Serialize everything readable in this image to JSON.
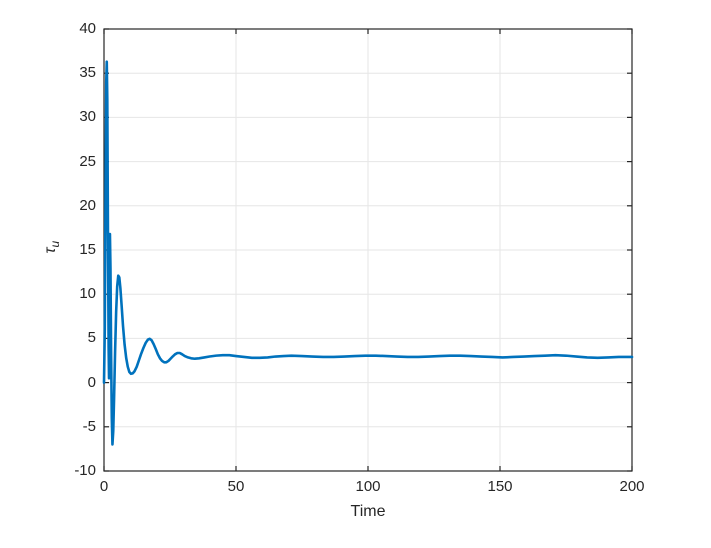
{
  "chart_data": {
    "type": "line",
    "title": "",
    "xlabel": "Time",
    "ylabel": "tau_u",
    "ylabel_tex": {
      "base": "τ",
      "sub": "u"
    },
    "xlim": [
      0,
      200
    ],
    "ylim": [
      -10,
      40
    ],
    "xticks": [
      0,
      50,
      100,
      150,
      200
    ],
    "yticks": [
      -10,
      -5,
      0,
      5,
      10,
      15,
      20,
      25,
      30,
      35,
      40
    ],
    "grid": true,
    "legend_position": "none",
    "colors": {
      "line": "#0072BD",
      "grid": "#E6E6E6",
      "axis": "#262626",
      "tick_label": "#262626",
      "background": "#FFFFFF"
    },
    "series": [
      {
        "name": "tau_u",
        "points": [
          [
            0,
            0
          ],
          [
            0.3,
            6
          ],
          [
            0.6,
            22
          ],
          [
            0.85,
            34
          ],
          [
            1.05,
            36.3
          ],
          [
            1.25,
            32
          ],
          [
            1.5,
            17
          ],
          [
            1.75,
            4
          ],
          [
            1.9,
            0.5
          ],
          [
            2.05,
            8
          ],
          [
            2.25,
            16.8
          ],
          [
            2.45,
            13
          ],
          [
            2.7,
            3
          ],
          [
            2.95,
            -4
          ],
          [
            3.2,
            -7
          ],
          [
            3.5,
            -5.5
          ],
          [
            3.8,
            -2
          ],
          [
            4.2,
            3.5
          ],
          [
            4.6,
            8
          ],
          [
            5,
            10.9
          ],
          [
            5.4,
            12.1
          ],
          [
            5.8,
            11.9
          ],
          [
            6.2,
            10.7
          ],
          [
            6.7,
            8.6
          ],
          [
            7.2,
            6.4
          ],
          [
            7.8,
            4.3
          ],
          [
            8.4,
            2.8
          ],
          [
            9,
            1.8
          ],
          [
            9.6,
            1.2
          ],
          [
            10.2,
            1
          ],
          [
            10.9,
            1.05
          ],
          [
            11.6,
            1.3
          ],
          [
            12.4,
            1.8
          ],
          [
            13.2,
            2.5
          ],
          [
            14,
            3.2
          ],
          [
            14.9,
            3.9
          ],
          [
            15.8,
            4.5
          ],
          [
            16.6,
            4.85
          ],
          [
            17.3,
            4.95
          ],
          [
            18,
            4.8
          ],
          [
            18.8,
            4.35
          ],
          [
            19.6,
            3.8
          ],
          [
            20.4,
            3.2
          ],
          [
            21.2,
            2.75
          ],
          [
            22,
            2.45
          ],
          [
            22.8,
            2.3
          ],
          [
            23.6,
            2.3
          ],
          [
            24.4,
            2.45
          ],
          [
            25.2,
            2.7
          ],
          [
            26,
            2.95
          ],
          [
            26.9,
            3.2
          ],
          [
            27.8,
            3.35
          ],
          [
            28.7,
            3.35
          ],
          [
            29.6,
            3.2
          ],
          [
            30.6,
            3
          ],
          [
            31.8,
            2.85
          ],
          [
            33,
            2.75
          ],
          [
            34.4,
            2.7
          ],
          [
            36,
            2.75
          ],
          [
            38,
            2.85
          ],
          [
            40,
            2.95
          ],
          [
            42.5,
            3.05
          ],
          [
            45,
            3.1
          ],
          [
            47.5,
            3.1
          ],
          [
            50,
            3
          ],
          [
            53,
            2.9
          ],
          [
            56,
            2.8
          ],
          [
            59,
            2.8
          ],
          [
            62,
            2.85
          ],
          [
            65,
            2.95
          ],
          [
            68,
            3
          ],
          [
            71,
            3.05
          ],
          [
            75,
            3
          ],
          [
            79,
            2.95
          ],
          [
            83,
            2.9
          ],
          [
            87,
            2.9
          ],
          [
            91,
            2.95
          ],
          [
            95,
            3
          ],
          [
            99,
            3.05
          ],
          [
            103,
            3.05
          ],
          [
            107,
            3
          ],
          [
            111,
            2.95
          ],
          [
            115,
            2.9
          ],
          [
            119,
            2.9
          ],
          [
            123,
            2.95
          ],
          [
            127,
            3
          ],
          [
            131,
            3.05
          ],
          [
            135,
            3.05
          ],
          [
            139,
            3
          ],
          [
            143,
            2.95
          ],
          [
            147,
            2.9
          ],
          [
            151,
            2.85
          ],
          [
            155,
            2.9
          ],
          [
            159,
            2.95
          ],
          [
            163,
            3
          ],
          [
            167,
            3.05
          ],
          [
            171,
            3.1
          ],
          [
            175,
            3.05
          ],
          [
            179,
            2.95
          ],
          [
            183,
            2.85
          ],
          [
            187,
            2.8
          ],
          [
            191,
            2.85
          ],
          [
            195,
            2.9
          ],
          [
            200,
            2.9
          ]
        ]
      }
    ]
  }
}
